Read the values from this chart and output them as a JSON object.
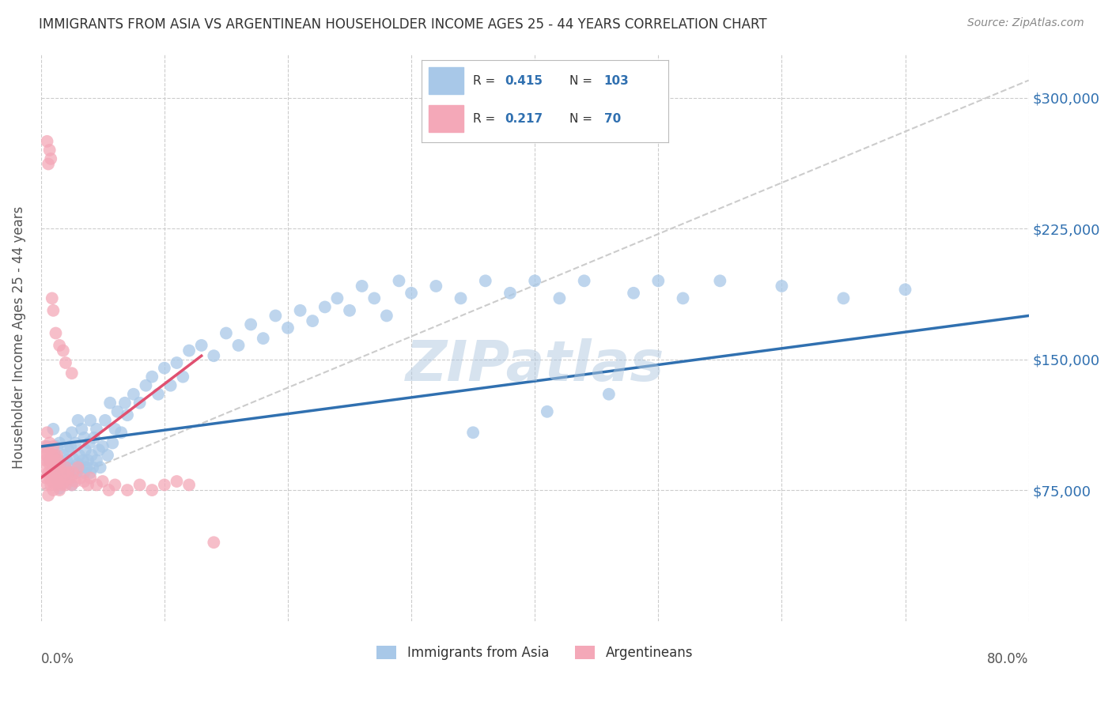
{
  "title": "IMMIGRANTS FROM ASIA VS ARGENTINEAN HOUSEHOLDER INCOME AGES 25 - 44 YEARS CORRELATION CHART",
  "source": "Source: ZipAtlas.com",
  "ylabel": "Householder Income Ages 25 - 44 years",
  "xlim": [
    0.0,
    0.8
  ],
  "ylim": [
    0,
    325000
  ],
  "yticks": [
    75000,
    150000,
    225000,
    300000
  ],
  "ytick_labels": [
    "$75,000",
    "$150,000",
    "$225,000",
    "$300,000"
  ],
  "blue_color": "#a8c8e8",
  "pink_color": "#f4a8b8",
  "blue_line_color": "#3070b0",
  "pink_line_color": "#e05070",
  "diag_line_color": "#cccccc",
  "watermark": "ZIPatlas",
  "blue_R": "0.415",
  "blue_N": "103",
  "pink_R": "0.217",
  "pink_N": "70",
  "blue_scatter_x": [
    0.005,
    0.007,
    0.009,
    0.01,
    0.01,
    0.011,
    0.012,
    0.013,
    0.014,
    0.015,
    0.015,
    0.016,
    0.017,
    0.018,
    0.019,
    0.02,
    0.02,
    0.021,
    0.022,
    0.023,
    0.024,
    0.025,
    0.025,
    0.026,
    0.027,
    0.028,
    0.029,
    0.03,
    0.03,
    0.031,
    0.032,
    0.033,
    0.034,
    0.035,
    0.035,
    0.036,
    0.037,
    0.038,
    0.039,
    0.04,
    0.04,
    0.041,
    0.042,
    0.043,
    0.045,
    0.045,
    0.047,
    0.048,
    0.05,
    0.052,
    0.054,
    0.056,
    0.058,
    0.06,
    0.062,
    0.065,
    0.068,
    0.07,
    0.075,
    0.08,
    0.085,
    0.09,
    0.095,
    0.1,
    0.105,
    0.11,
    0.115,
    0.12,
    0.13,
    0.14,
    0.15,
    0.16,
    0.17,
    0.18,
    0.19,
    0.2,
    0.21,
    0.22,
    0.23,
    0.24,
    0.25,
    0.26,
    0.27,
    0.28,
    0.29,
    0.3,
    0.32,
    0.34,
    0.36,
    0.38,
    0.4,
    0.42,
    0.44,
    0.48,
    0.5,
    0.52,
    0.55,
    0.6,
    0.65,
    0.7,
    0.35,
    0.41,
    0.46
  ],
  "blue_scatter_y": [
    100000,
    92000,
    95000,
    88000,
    110000,
    95000,
    82000,
    100000,
    88000,
    76000,
    102000,
    90000,
    85000,
    95000,
    80000,
    88000,
    105000,
    92000,
    98000,
    85000,
    100000,
    78000,
    108000,
    93000,
    88000,
    102000,
    85000,
    90000,
    115000,
    95000,
    88000,
    110000,
    92000,
    85000,
    105000,
    98000,
    88000,
    92000,
    102000,
    85000,
    115000,
    95000,
    88000,
    105000,
    92000,
    110000,
    98000,
    88000,
    100000,
    115000,
    95000,
    125000,
    102000,
    110000,
    120000,
    108000,
    125000,
    118000,
    130000,
    125000,
    135000,
    140000,
    130000,
    145000,
    135000,
    148000,
    140000,
    155000,
    158000,
    152000,
    165000,
    158000,
    170000,
    162000,
    175000,
    168000,
    178000,
    172000,
    180000,
    185000,
    178000,
    192000,
    185000,
    175000,
    195000,
    188000,
    192000,
    185000,
    195000,
    188000,
    195000,
    185000,
    195000,
    188000,
    195000,
    185000,
    195000,
    192000,
    185000,
    190000,
    108000,
    120000,
    130000
  ],
  "pink_scatter_x": [
    0.002,
    0.003,
    0.003,
    0.004,
    0.004,
    0.005,
    0.005,
    0.005,
    0.006,
    0.006,
    0.006,
    0.007,
    0.007,
    0.007,
    0.008,
    0.008,
    0.008,
    0.009,
    0.009,
    0.01,
    0.01,
    0.01,
    0.011,
    0.011,
    0.012,
    0.012,
    0.013,
    0.013,
    0.014,
    0.014,
    0.015,
    0.015,
    0.016,
    0.017,
    0.018,
    0.019,
    0.02,
    0.02,
    0.022,
    0.024,
    0.025,
    0.026,
    0.028,
    0.03,
    0.032,
    0.035,
    0.038,
    0.04,
    0.045,
    0.05,
    0.055,
    0.06,
    0.07,
    0.08,
    0.09,
    0.1,
    0.11,
    0.12,
    0.14,
    0.018,
    0.005,
    0.007,
    0.008,
    0.006,
    0.009,
    0.01,
    0.012,
    0.015,
    0.02,
    0.025
  ],
  "pink_scatter_y": [
    95000,
    88000,
    100000,
    92000,
    82000,
    95000,
    78000,
    108000,
    85000,
    98000,
    72000,
    90000,
    82000,
    102000,
    78000,
    92000,
    85000,
    80000,
    95000,
    75000,
    90000,
    100000,
    82000,
    95000,
    78000,
    90000,
    85000,
    95000,
    80000,
    92000,
    75000,
    88000,
    82000,
    78000,
    85000,
    80000,
    88000,
    78000,
    85000,
    82000,
    78000,
    85000,
    80000,
    88000,
    82000,
    80000,
    78000,
    82000,
    78000,
    80000,
    75000,
    78000,
    75000,
    78000,
    75000,
    78000,
    80000,
    78000,
    45000,
    155000,
    275000,
    270000,
    265000,
    262000,
    185000,
    178000,
    165000,
    158000,
    148000,
    142000
  ],
  "bg_color": "#ffffff",
  "grid_color": "#cccccc"
}
